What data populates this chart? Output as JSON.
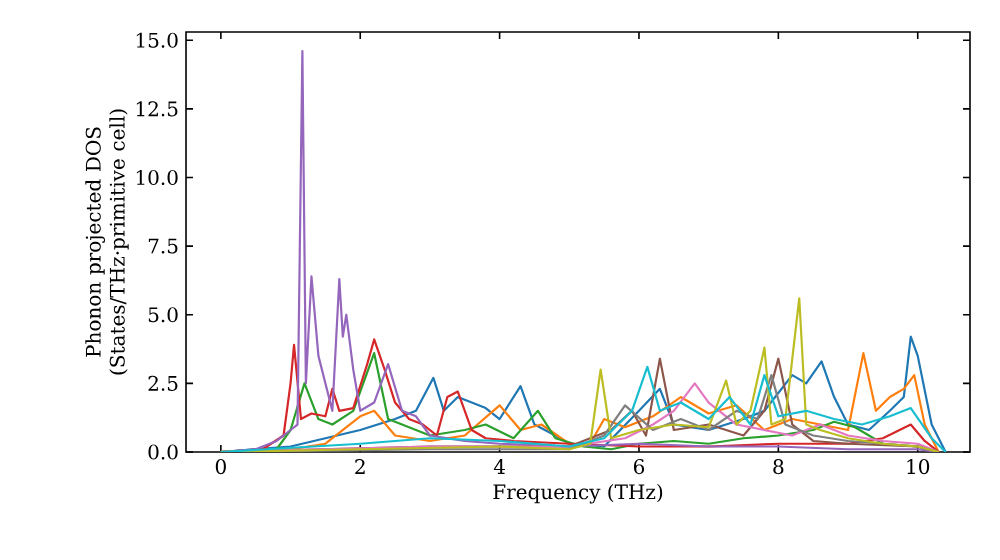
{
  "chart_data": {
    "type": "line",
    "xlabel": "Frequency (THz)",
    "ylabel": "Phonon projected DOS (States/THz·primitive cell)",
    "xlim": [
      -0.5,
      10.75
    ],
    "ylim": [
      0,
      15.3
    ],
    "xticks": [
      0,
      2,
      4,
      6,
      8,
      10
    ],
    "yticks": [
      {
        "value": 0,
        "label": "0.0"
      },
      {
        "value": 2.5,
        "label": "2.5"
      },
      {
        "value": 5,
        "label": "5.0"
      },
      {
        "value": 7.5,
        "label": "7.5"
      },
      {
        "value": 10,
        "label": "10.0"
      },
      {
        "value": 12.5,
        "label": "12.5"
      },
      {
        "value": 15,
        "label": "15.0"
      }
    ],
    "marker": "none",
    "line_style": "solid",
    "series": [
      {
        "color": "#1f77b4",
        "x": [
          0,
          1,
          1.5,
          2,
          2.5,
          2.8,
          3.05,
          3.2,
          3.4,
          3.6,
          3.8,
          4.0,
          4.3,
          4.5,
          4.8,
          5.0,
          5.5,
          6,
          6.3,
          6.5,
          7,
          7.5,
          7.8,
          8.2,
          8.4,
          8.62,
          8.8,
          9,
          9.3,
          9.6,
          9.8,
          9.9,
          10.0,
          10.2,
          10.4
        ],
        "values": [
          0,
          0.2,
          0.5,
          0.8,
          1.2,
          1.5,
          2.7,
          1.5,
          2.0,
          1.8,
          1.6,
          1.2,
          2.4,
          1.0,
          0.6,
          0.3,
          0.2,
          1.5,
          2.3,
          1.0,
          0.8,
          1.2,
          1.5,
          2.8,
          2.5,
          3.3,
          2.0,
          1.0,
          0.8,
          1.5,
          2.0,
          4.2,
          3.5,
          1.0,
          0
        ]
      },
      {
        "color": "#ff7f0e",
        "x": [
          0,
          1,
          1.5,
          2.0,
          2.2,
          2.5,
          3.0,
          3.5,
          4.0,
          4.3,
          4.6,
          5.0,
          5.3,
          5.5,
          5.8,
          6.2,
          6.6,
          7.0,
          7.4,
          7.8,
          8.2,
          8.6,
          9.0,
          9.22,
          9.4,
          9.6,
          9.8,
          9.95,
          10.1,
          10.3
        ],
        "values": [
          0,
          0.1,
          0.3,
          1.3,
          1.5,
          0.6,
          0.4,
          0.6,
          1.7,
          0.8,
          1.0,
          0.3,
          0.3,
          1.2,
          0.9,
          1.3,
          2.0,
          1.4,
          1.7,
          0.8,
          1.2,
          1.0,
          0.8,
          3.6,
          1.5,
          2.0,
          2.3,
          2.8,
          1.0,
          0
        ]
      },
      {
        "color": "#2ca02c",
        "x": [
          0,
          0.8,
          1.0,
          1.2,
          1.4,
          1.6,
          1.9,
          2.2,
          2.4,
          2.6,
          3.0,
          3.5,
          3.8,
          4.2,
          4.55,
          4.8,
          5.2,
          5.6,
          6,
          6.5,
          7,
          7.5,
          8,
          8.5,
          8.8,
          9.1,
          9.5,
          10,
          10.3
        ],
        "values": [
          0,
          0.1,
          0.8,
          2.5,
          1.2,
          1.0,
          1.5,
          3.6,
          1.2,
          1.0,
          0.6,
          0.8,
          1.0,
          0.5,
          1.5,
          0.5,
          0.2,
          0.1,
          0.3,
          0.4,
          0.3,
          0.5,
          0.6,
          0.8,
          1.1,
          0.9,
          0.3,
          0.2,
          0
        ]
      },
      {
        "color": "#d62728",
        "x": [
          0,
          0.6,
          0.9,
          1.0,
          1.05,
          1.15,
          1.3,
          1.5,
          1.6,
          1.7,
          1.9,
          2.1,
          2.2,
          2.35,
          2.5,
          2.7,
          2.9,
          3.1,
          3.25,
          3.4,
          3.6,
          3.8,
          4.2,
          5,
          6,
          7,
          8,
          9,
          9.5,
          9.9,
          10.1,
          10.3
        ],
        "values": [
          0,
          0.1,
          0.6,
          2.5,
          3.9,
          1.2,
          1.4,
          1.3,
          2.3,
          1.5,
          1.6,
          3.2,
          4.1,
          3.0,
          1.8,
          1.2,
          1.0,
          0.6,
          2.0,
          2.2,
          0.8,
          0.5,
          0.4,
          0.3,
          0.2,
          0.2,
          0.3,
          0.3,
          0.5,
          1.0,
          0.4,
          0
        ]
      },
      {
        "color": "#9467bd",
        "x": [
          0,
          0.5,
          0.8,
          1.0,
          1.1,
          1.17,
          1.22,
          1.3,
          1.4,
          1.5,
          1.6,
          1.7,
          1.75,
          1.8,
          1.9,
          2.0,
          2.2,
          2.4,
          2.6,
          2.8,
          3.0,
          3.5,
          4,
          5,
          6,
          7,
          8,
          9,
          10,
          10.3
        ],
        "values": [
          0,
          0.1,
          0.4,
          0.8,
          1.0,
          14.6,
          2.5,
          6.4,
          3.5,
          2.5,
          1.5,
          6.3,
          4.2,
          5.0,
          3.0,
          1.5,
          1.8,
          3.2,
          1.5,
          1.3,
          0.6,
          0.4,
          0.3,
          0.2,
          0.3,
          0.2,
          0.2,
          0.1,
          0.1,
          0
        ]
      },
      {
        "color": "#8c564b",
        "x": [
          0,
          3,
          5,
          5.6,
          5.9,
          6.1,
          6.3,
          6.5,
          7,
          7.5,
          7.8,
          8.0,
          8.2,
          8.5,
          9,
          10,
          10.3
        ],
        "values": [
          0,
          0.2,
          0.2,
          0.8,
          1.5,
          0.6,
          3.4,
          0.8,
          1.0,
          0.6,
          1.5,
          3.4,
          1.0,
          0.4,
          0.3,
          0.2,
          0
        ]
      },
      {
        "color": "#e377c2",
        "x": [
          0,
          3,
          5,
          5.8,
          6.2,
          6.5,
          6.8,
          7.0,
          7.4,
          7.8,
          8.2,
          8.6,
          9,
          9.5,
          10,
          10.3
        ],
        "values": [
          0,
          0.2,
          0.2,
          0.5,
          1.0,
          1.5,
          2.5,
          1.8,
          1.0,
          0.8,
          0.6,
          1.0,
          0.6,
          0.4,
          0.3,
          0
        ]
      },
      {
        "color": "#7f7f7f",
        "x": [
          0,
          3,
          5,
          5.5,
          5.8,
          6.2,
          6.6,
          7,
          7.4,
          7.7,
          7.9,
          8.1,
          8.5,
          9,
          10,
          10.3
        ],
        "values": [
          0,
          0.1,
          0.1,
          0.6,
          1.7,
          0.8,
          1.2,
          0.8,
          1.5,
          1.2,
          2.8,
          1.0,
          0.6,
          0.4,
          0.2,
          0
        ]
      },
      {
        "color": "#bcbd22",
        "x": [
          0,
          2,
          4,
          5.0,
          5.3,
          5.45,
          5.6,
          6,
          6.5,
          7,
          7.25,
          7.4,
          7.6,
          7.8,
          7.9,
          8.1,
          8.3,
          8.4,
          8.6,
          9,
          9.5,
          10,
          10.3
        ],
        "values": [
          0,
          0.1,
          0.2,
          0.1,
          0.3,
          3.0,
          0.5,
          0.8,
          1.0,
          0.9,
          2.6,
          1.0,
          1.5,
          3.8,
          1.0,
          1.2,
          5.6,
          1.0,
          0.8,
          0.5,
          0.3,
          0.2,
          0
        ]
      },
      {
        "color": "#17becf",
        "x": [
          0,
          2,
          3,
          4,
          5,
          5.5,
          5.9,
          6.12,
          6.3,
          6.6,
          7.0,
          7.3,
          7.6,
          7.8,
          8.0,
          8.4,
          8.8,
          9.2,
          9.6,
          9.9,
          10.2,
          10.4
        ],
        "values": [
          0,
          0.3,
          0.5,
          0.4,
          0.2,
          0.5,
          1.5,
          3.1,
          1.5,
          1.8,
          1.2,
          2.0,
          1.0,
          2.8,
          1.3,
          1.5,
          1.2,
          1.0,
          1.3,
          1.6,
          0.5,
          0
        ]
      }
    ]
  }
}
